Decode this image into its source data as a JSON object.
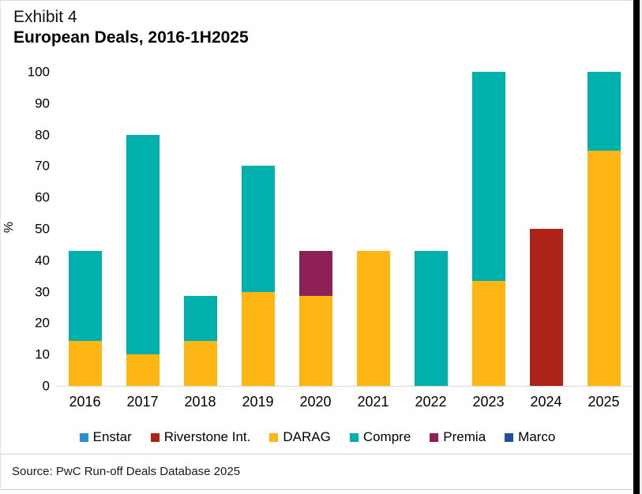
{
  "page": {
    "exhibit_label": "Exhibit 4",
    "title": "European Deals, 2016-1H2025",
    "source": "Source: PwC Run-off Deals Database 2025"
  },
  "colors": {
    "Enstar": "#2E8FD0",
    "Riverstone Int.": "#AE2317",
    "DARAG": "#FDB614",
    "Compre": "#00B0AC",
    "Premia": "#8E2057",
    "Marco": "#1F4E9E",
    "axis_line": "#d9d9d9"
  },
  "chart_data": {
    "type": "bar",
    "stacked": true,
    "title": "European Deals, 2016-1H2025",
    "xlabel": "",
    "ylabel": "%",
    "ylim": [
      0,
      100
    ],
    "ytick_step": 10,
    "grid": false,
    "legend_position": "bottom",
    "categories": [
      "2016",
      "2017",
      "2018",
      "2019",
      "2020",
      "2021",
      "2022",
      "2023",
      "2024",
      "2025"
    ],
    "series": [
      {
        "name": "Enstar",
        "values": [
          0,
          0,
          0,
          0,
          0,
          0,
          0,
          0,
          0,
          0
        ]
      },
      {
        "name": "Riverstone Int.",
        "values": [
          0,
          0,
          0,
          0,
          0,
          0,
          0,
          0,
          50,
          0
        ]
      },
      {
        "name": "DARAG",
        "values": [
          14.3,
          10,
          14.3,
          30,
          28.6,
          42.9,
          0,
          33.3,
          0,
          75
        ]
      },
      {
        "name": "Compre",
        "values": [
          28.6,
          70,
          14.3,
          40,
          0,
          0,
          42.9,
          66.7,
          0,
          25
        ]
      },
      {
        "name": "Premia",
        "values": [
          0,
          0,
          0,
          0,
          14.3,
          0,
          0,
          0,
          0,
          0
        ]
      },
      {
        "name": "Marco",
        "values": [
          0,
          0,
          0,
          0,
          0,
          0,
          0,
          0,
          0,
          0
        ]
      }
    ]
  }
}
